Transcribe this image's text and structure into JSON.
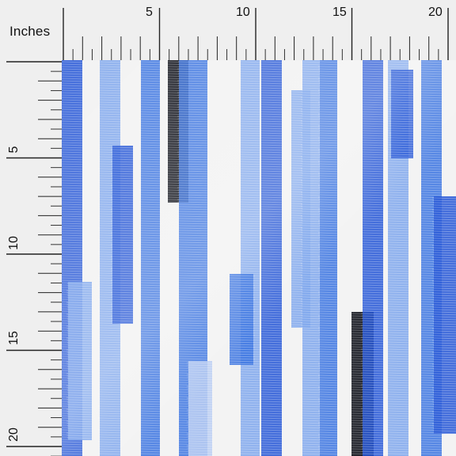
{
  "ruler": {
    "units_label": "Inches",
    "top_labels": [
      "5",
      "10",
      "15",
      "20"
    ],
    "left_labels": [
      "5",
      "10",
      "15",
      "20"
    ]
  },
  "fabric": {
    "pattern": "watercolor-vertical-scribble-stripes",
    "background_color": "#f3f3f3",
    "colors": {
      "royal_blue": "#2556d6",
      "medium_blue": "#3a73e0",
      "light_blue": "#7ea6ec",
      "pale_blue": "#b9cdf2",
      "navy": "#1b3a9a",
      "black": "#14161e"
    }
  }
}
